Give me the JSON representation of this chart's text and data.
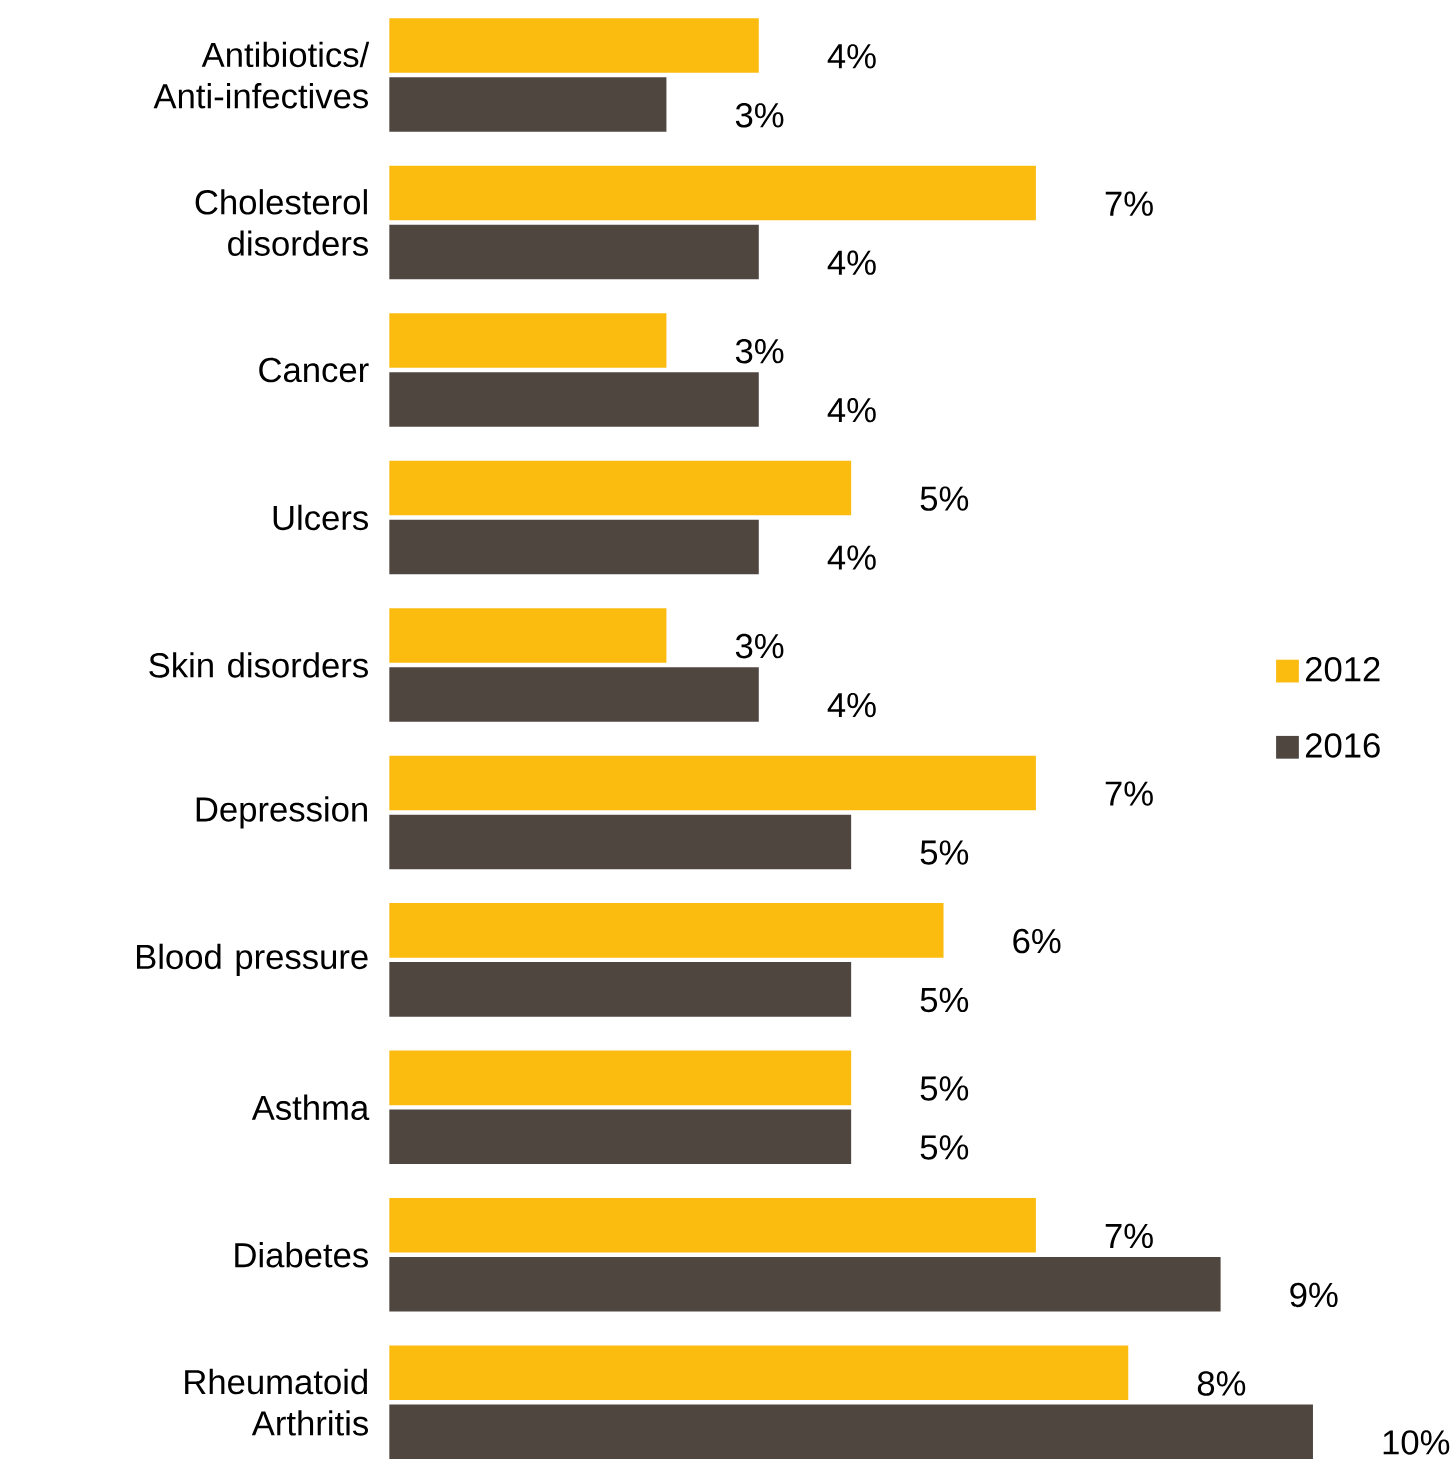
{
  "chart_data": {
    "type": "bar",
    "orientation": "horizontal",
    "categories": [
      "Antibiotics/ Anti-infectives",
      "Cholesterol disorders",
      "Cancer",
      "Ulcers",
      "Skin disorders",
      "Depression",
      "Blood pressure",
      "Asthma",
      "Diabetes",
      "Rheumatoid Arthritis"
    ],
    "series": [
      {
        "name": "2012",
        "color": "#fbbc0f",
        "values": [
          4,
          7,
          3,
          5,
          3,
          7,
          6,
          5,
          7,
          8
        ],
        "value_labels": [
          "4%",
          "7%",
          "3%",
          "5%",
          "3%",
          "7%",
          "6%",
          "5%",
          "7%",
          "8%"
        ]
      },
      {
        "name": "2016",
        "color": "#4f4640",
        "values": [
          3,
          4,
          4,
          4,
          4,
          5,
          5,
          5,
          9,
          10
        ],
        "value_labels": [
          "3%",
          "4%",
          "4%",
          "4%",
          "4%",
          "5%",
          "5%",
          "5%",
          "9%",
          "10%"
        ]
      }
    ],
    "legend": "right",
    "tick_labels": "y"
  }
}
